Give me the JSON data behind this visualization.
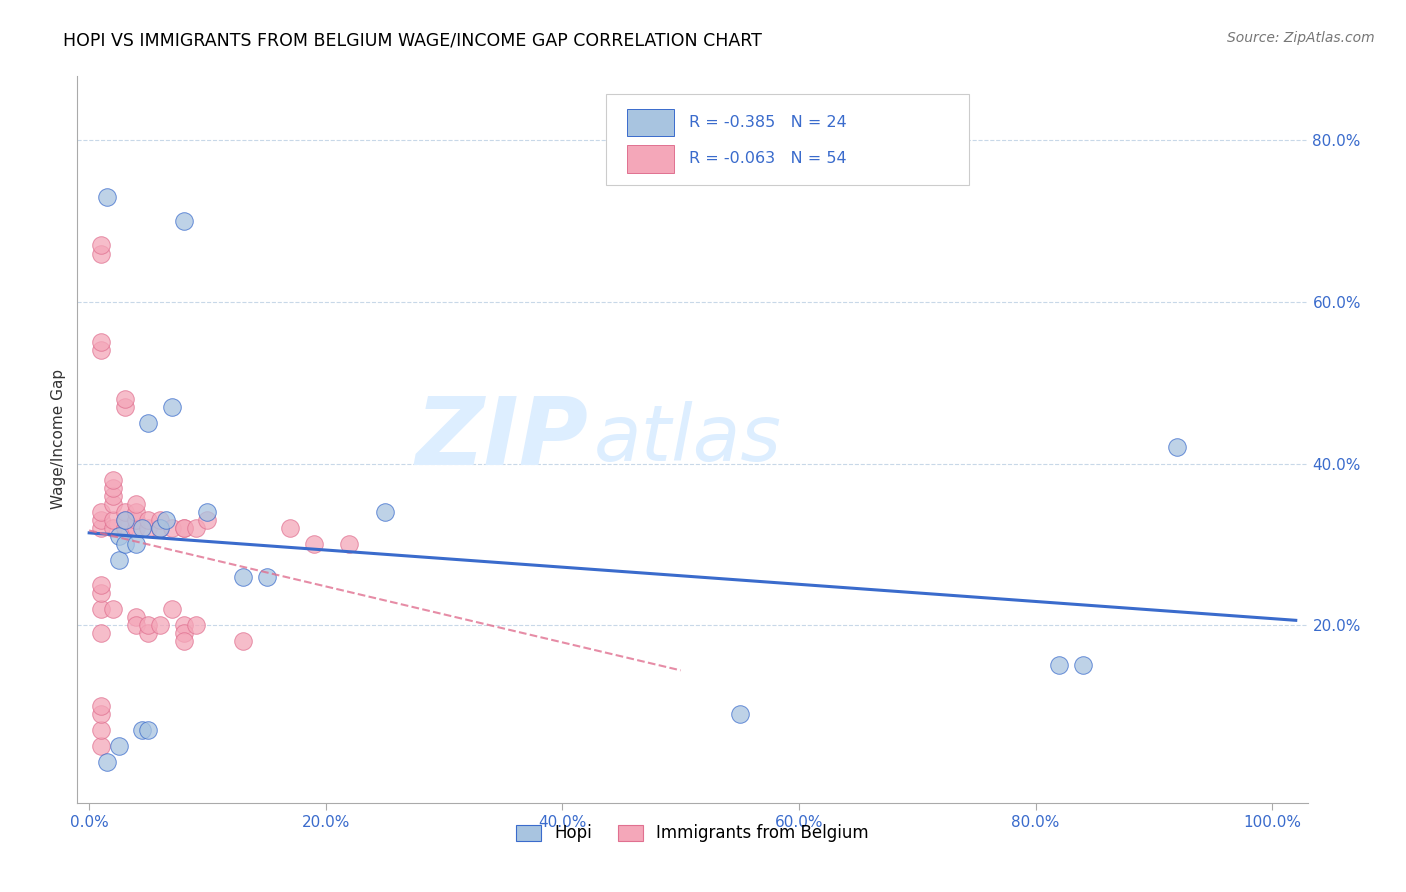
{
  "title": "HOPI VS IMMIGRANTS FROM BELGIUM WAGE/INCOME GAP CORRELATION CHART",
  "source": "Source: ZipAtlas.com",
  "ylabel": "Wage/Income Gap",
  "xlim": [
    -0.01,
    1.03
  ],
  "ylim": [
    -0.02,
    0.88
  ],
  "xtick_labels": [
    "0.0%",
    "20.0%",
    "40.0%",
    "60.0%",
    "80.0%",
    "100.0%"
  ],
  "xtick_positions": [
    0.0,
    0.2,
    0.4,
    0.6,
    0.8,
    1.0
  ],
  "ytick_labels": [
    "20.0%",
    "40.0%",
    "60.0%",
    "80.0%"
  ],
  "ytick_positions": [
    0.2,
    0.4,
    0.6,
    0.8
  ],
  "legend_label1": "Hopi",
  "legend_label2": "Immigrants from Belgium",
  "R1": "-0.385",
  "N1": "24",
  "R2": "-0.063",
  "N2": "54",
  "color1": "#a8c4e0",
  "color2": "#f4a7b9",
  "line_color1": "#3a6bcc",
  "line_color2": "#e07090",
  "watermark_zip": "ZIP",
  "watermark_atlas": "atlas",
  "watermark_color": "#ddeeff",
  "hopi_x": [
    0.015,
    0.015,
    0.025,
    0.025,
    0.025,
    0.03,
    0.03,
    0.04,
    0.045,
    0.045,
    0.05,
    0.05,
    0.06,
    0.065,
    0.07,
    0.08,
    0.1,
    0.13,
    0.15,
    0.25,
    0.55,
    0.82,
    0.84,
    0.92
  ],
  "hopi_y": [
    0.03,
    0.73,
    0.05,
    0.28,
    0.31,
    0.3,
    0.33,
    0.3,
    0.07,
    0.32,
    0.45,
    0.07,
    0.32,
    0.33,
    0.47,
    0.7,
    0.34,
    0.26,
    0.26,
    0.34,
    0.09,
    0.15,
    0.15,
    0.42
  ],
  "belgium_x": [
    0.01,
    0.01,
    0.01,
    0.01,
    0.01,
    0.01,
    0.01,
    0.01,
    0.01,
    0.01,
    0.01,
    0.01,
    0.01,
    0.01,
    0.01,
    0.02,
    0.02,
    0.02,
    0.02,
    0.02,
    0.02,
    0.02,
    0.03,
    0.03,
    0.03,
    0.03,
    0.03,
    0.04,
    0.04,
    0.04,
    0.04,
    0.04,
    0.04,
    0.05,
    0.05,
    0.05,
    0.05,
    0.06,
    0.06,
    0.06,
    0.07,
    0.07,
    0.08,
    0.08,
    0.08,
    0.08,
    0.08,
    0.09,
    0.09,
    0.1,
    0.13,
    0.17,
    0.19,
    0.22
  ],
  "belgium_y": [
    0.32,
    0.33,
    0.34,
    0.54,
    0.55,
    0.66,
    0.67,
    0.19,
    0.22,
    0.24,
    0.25,
    0.05,
    0.07,
    0.09,
    0.1,
    0.32,
    0.33,
    0.35,
    0.36,
    0.37,
    0.38,
    0.22,
    0.32,
    0.33,
    0.34,
    0.47,
    0.48,
    0.32,
    0.33,
    0.34,
    0.35,
    0.21,
    0.2,
    0.32,
    0.33,
    0.19,
    0.2,
    0.32,
    0.33,
    0.2,
    0.32,
    0.22,
    0.32,
    0.32,
    0.2,
    0.19,
    0.18,
    0.32,
    0.2,
    0.33,
    0.18,
    0.32,
    0.3,
    0.3
  ]
}
